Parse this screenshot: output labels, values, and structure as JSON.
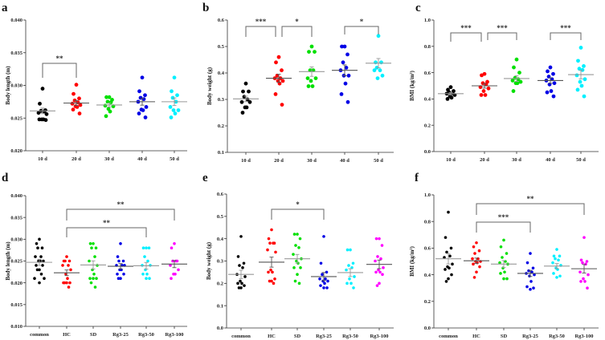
{
  "chart_data": [
    {
      "panel": "a",
      "type": "scatter",
      "ylabel": "Body length (m)",
      "ylim": [
        0.02,
        0.04
      ],
      "yticks": [
        "0.020",
        "0.025",
        "0.030",
        "0.035",
        "0.040"
      ],
      "categories": [
        "10 d",
        "20 d",
        "30 d",
        "40 d",
        "50 d"
      ],
      "colors": [
        "#000000",
        "#ff0000",
        "#00e000",
        "#0000e6",
        "#00f0ff"
      ],
      "means": [
        0.0261,
        0.0273,
        0.027,
        0.0275,
        0.0275
      ],
      "values": [
        [
          0.0295,
          0.0272,
          0.0262,
          0.0261,
          0.026,
          0.0258,
          0.0256,
          0.0248,
          0.0248,
          0.0248,
          0.0247
        ],
        [
          0.0301,
          0.0287,
          0.028,
          0.0277,
          0.0274,
          0.0272,
          0.027,
          0.0268,
          0.0267,
          0.0263,
          0.0257
        ],
        [
          0.0282,
          0.0282,
          0.0278,
          0.0275,
          0.0274,
          0.0269,
          0.0268,
          0.0264,
          0.026,
          0.0253
        ],
        [
          0.0312,
          0.0291,
          0.0285,
          0.0281,
          0.0279,
          0.0275,
          0.0267,
          0.0263,
          0.0262,
          0.0257,
          0.0251
        ],
        [
          0.0312,
          0.0291,
          0.0285,
          0.0281,
          0.0275,
          0.0267,
          0.0262,
          0.0262,
          0.0257,
          0.0251
        ]
      ],
      "significance": [
        {
          "from": "10 d",
          "to": "20 d",
          "label": "**"
        }
      ]
    },
    {
      "panel": "b",
      "type": "scatter",
      "ylabel": "Body weight (g)",
      "ylim": [
        0.1,
        0.6
      ],
      "yticks": [
        "0.1",
        "0.2",
        "0.3",
        "0.4",
        "0.5",
        "0.6"
      ],
      "categories": [
        "10 d",
        "20 d",
        "30 d",
        "40 d",
        "50 d"
      ],
      "colors": [
        "#000000",
        "#ff0000",
        "#00e000",
        "#0000e6",
        "#00f0ff"
      ],
      "means": [
        0.302,
        0.38,
        0.405,
        0.41,
        0.437
      ],
      "values": [
        [
          0.36,
          0.33,
          0.33,
          0.31,
          0.3,
          0.29,
          0.29,
          0.27,
          0.27,
          0.25
        ],
        [
          0.46,
          0.44,
          0.41,
          0.39,
          0.38,
          0.38,
          0.37,
          0.37,
          0.36,
          0.32,
          0.28
        ],
        [
          0.5,
          0.48,
          0.48,
          0.41,
          0.41,
          0.38,
          0.38,
          0.37,
          0.35,
          0.35
        ],
        [
          0.5,
          0.5,
          0.47,
          0.44,
          0.42,
          0.41,
          0.39,
          0.39,
          0.36,
          0.32,
          0.29
        ],
        [
          0.54,
          0.44,
          0.44,
          0.42,
          0.41,
          0.41,
          0.39,
          0.38
        ]
      ],
      "significance": [
        {
          "from": "10 d",
          "to": "20 d",
          "label": "***"
        },
        {
          "from": "20 d",
          "to": "30 d",
          "label": "*"
        },
        {
          "from": "40 d",
          "to": "50 d",
          "label": "*"
        }
      ]
    },
    {
      "panel": "c",
      "type": "scatter",
      "ylabel": "BMI (kg/m²)",
      "ylim": [
        0.0,
        1.0
      ],
      "yticks": [
        "0.0",
        "0.2",
        "0.4",
        "0.6",
        "0.8",
        "1.0"
      ],
      "categories": [
        "10 d",
        "20 d",
        "30 d",
        "40 d",
        "50 d"
      ],
      "colors": [
        "#000000",
        "#ff0000",
        "#00e000",
        "#0000e6",
        "#00f0ff"
      ],
      "means": [
        0.44,
        0.5,
        0.555,
        0.54,
        0.585
      ],
      "values": [
        [
          0.49,
          0.47,
          0.46,
          0.45,
          0.44,
          0.44,
          0.43,
          0.42,
          0.41,
          0.4
        ],
        [
          0.59,
          0.58,
          0.53,
          0.52,
          0.51,
          0.49,
          0.48,
          0.46,
          0.43,
          0.43
        ],
        [
          0.7,
          0.64,
          0.6,
          0.56,
          0.55,
          0.54,
          0.53,
          0.52,
          0.52,
          0.46
        ],
        [
          0.64,
          0.61,
          0.59,
          0.57,
          0.55,
          0.54,
          0.52,
          0.51,
          0.46,
          0.45,
          0.42
        ],
        [
          0.79,
          0.69,
          0.65,
          0.63,
          0.62,
          0.58,
          0.55,
          0.53,
          0.5,
          0.47,
          0.42
        ]
      ],
      "significance": [
        {
          "from": "10 d",
          "to": "20 d",
          "label": "***"
        },
        {
          "from": "20 d",
          "to": "30 d",
          "label": "***"
        },
        {
          "from": "40 d",
          "to": "50 d",
          "label": "***"
        }
      ]
    },
    {
      "panel": "d",
      "type": "scatter",
      "ylabel": "Body length (m)",
      "ylim": [
        0.01,
        0.04
      ],
      "yticks": [
        "0.010",
        "0.015",
        "0.020",
        "0.025",
        "0.030",
        "0.035",
        "0.040"
      ],
      "categories": [
        "common",
        "HC",
        "SD",
        "Rg3-25",
        "Rg3-50",
        "Rg3-100"
      ],
      "colors": [
        "#000000",
        "#ff0000",
        "#00e000",
        "#0000e6",
        "#00f0ff",
        "#ff00ff"
      ],
      "means": [
        0.0247,
        0.0223,
        0.0241,
        0.0238,
        0.0239,
        0.0243
      ],
      "values": [
        [
          0.03,
          0.029,
          0.028,
          0.028,
          0.026,
          0.026,
          0.025,
          0.025,
          0.025,
          0.024,
          0.024,
          0.023,
          0.023,
          0.022,
          0.021,
          0.021,
          0.02
        ],
        [
          0.026,
          0.025,
          0.025,
          0.025,
          0.024,
          0.024,
          0.023,
          0.022,
          0.021,
          0.02,
          0.02,
          0.02,
          0.02,
          0.019
        ],
        [
          0.029,
          0.029,
          0.028,
          0.028,
          0.026,
          0.025,
          0.024,
          0.023,
          0.022,
          0.021,
          0.021,
          0.021,
          0.02,
          0.019
        ],
        [
          0.029,
          0.026,
          0.025,
          0.025,
          0.024,
          0.024,
          0.024,
          0.023,
          0.023,
          0.022,
          0.022,
          0.021,
          0.021
        ],
        [
          0.028,
          0.028,
          0.028,
          0.026,
          0.025,
          0.024,
          0.024,
          0.023,
          0.022,
          0.022,
          0.021,
          0.021
        ],
        [
          0.029,
          0.028,
          0.025,
          0.025,
          0.025,
          0.024,
          0.023,
          0.022,
          0.022,
          0.021
        ]
      ],
      "significance": [
        {
          "from": "HC",
          "to": "Rg3-100",
          "label": "**"
        },
        {
          "from": "HC",
          "to": "Rg3-50",
          "label": "**"
        }
      ]
    },
    {
      "panel": "e",
      "type": "scatter",
      "ylabel": "Body weight (g)",
      "ylim": [
        0.0,
        0.6
      ],
      "yticks": [
        "0.0",
        "0.1",
        "0.2",
        "0.3",
        "0.4",
        "0.5",
        "0.6"
      ],
      "categories": [
        "common",
        "HC",
        "SD",
        "Rg3-25",
        "Rg3-50",
        "Rg3-100"
      ],
      "colors": [
        "#000000",
        "#ff0000",
        "#00e000",
        "#0000e6",
        "#00f0ff",
        "#ff00ff"
      ],
      "means": [
        0.24,
        0.295,
        0.31,
        0.23,
        0.248,
        0.285
      ],
      "values": [
        [
          0.41,
          0.32,
          0.29,
          0.28,
          0.27,
          0.24,
          0.23,
          0.21,
          0.2,
          0.2,
          0.19,
          0.18,
          0.18
        ],
        [
          0.44,
          0.4,
          0.38,
          0.38,
          0.38,
          0.35,
          0.34,
          0.26,
          0.25,
          0.25,
          0.22,
          0.21,
          0.21,
          0.2
        ],
        [
          0.42,
          0.42,
          0.4,
          0.37,
          0.36,
          0.33,
          0.31,
          0.3,
          0.29,
          0.27,
          0.27,
          0.24,
          0.21,
          0.2
        ],
        [
          0.41,
          0.29,
          0.25,
          0.24,
          0.22,
          0.22,
          0.21,
          0.21,
          0.2,
          0.19,
          0.18,
          0.18
        ],
        [
          0.35,
          0.35,
          0.29,
          0.28,
          0.27,
          0.26,
          0.23,
          0.22,
          0.2,
          0.2,
          0.18
        ],
        [
          0.4,
          0.4,
          0.37,
          0.32,
          0.31,
          0.3,
          0.27,
          0.26,
          0.25,
          0.25,
          0.24,
          0.2,
          0.19
        ]
      ],
      "significance": [
        {
          "from": "HC",
          "to": "Rg3-25",
          "label": "*"
        }
      ]
    },
    {
      "panel": "f",
      "type": "scatter",
      "ylabel": "BMI (kg/m²)",
      "ylim": [
        0.0,
        1.0
      ],
      "yticks": [
        "0.0",
        "0.2",
        "0.4",
        "0.6",
        "0.8",
        "1.0"
      ],
      "categories": [
        "common",
        "HC",
        "SD",
        "Rg3-25",
        "Rg3-50",
        "Rg3-100"
      ],
      "colors": [
        "#000000",
        "#ff0000",
        "#00e000",
        "#0000e6",
        "#00f0ff",
        "#ff00ff"
      ],
      "means": [
        0.52,
        0.505,
        0.48,
        0.41,
        0.465,
        0.445
      ],
      "values": [
        [
          0.87,
          0.68,
          0.6,
          0.57,
          0.54,
          0.53,
          0.48,
          0.46,
          0.45,
          0.44,
          0.4,
          0.37,
          0.35
        ],
        [
          0.64,
          0.61,
          0.58,
          0.56,
          0.52,
          0.52,
          0.5,
          0.5,
          0.49,
          0.48,
          0.46,
          0.42,
          0.38
        ],
        [
          0.66,
          0.61,
          0.56,
          0.53,
          0.5,
          0.49,
          0.48,
          0.45,
          0.42,
          0.41,
          0.37,
          0.37
        ],
        [
          0.56,
          0.49,
          0.45,
          0.43,
          0.42,
          0.41,
          0.4,
          0.39,
          0.35,
          0.31,
          0.3,
          0.29
        ],
        [
          0.59,
          0.54,
          0.54,
          0.52,
          0.51,
          0.49,
          0.47,
          0.45,
          0.44,
          0.41,
          0.39,
          0.38
        ],
        [
          0.68,
          0.51,
          0.5,
          0.49,
          0.48,
          0.42,
          0.4,
          0.37,
          0.35,
          0.35,
          0.3
        ]
      ],
      "significance": [
        {
          "from": "HC",
          "to": "Rg3-100",
          "label": "**"
        },
        {
          "from": "HC",
          "to": "Rg3-25",
          "label": "***"
        }
      ]
    }
  ]
}
